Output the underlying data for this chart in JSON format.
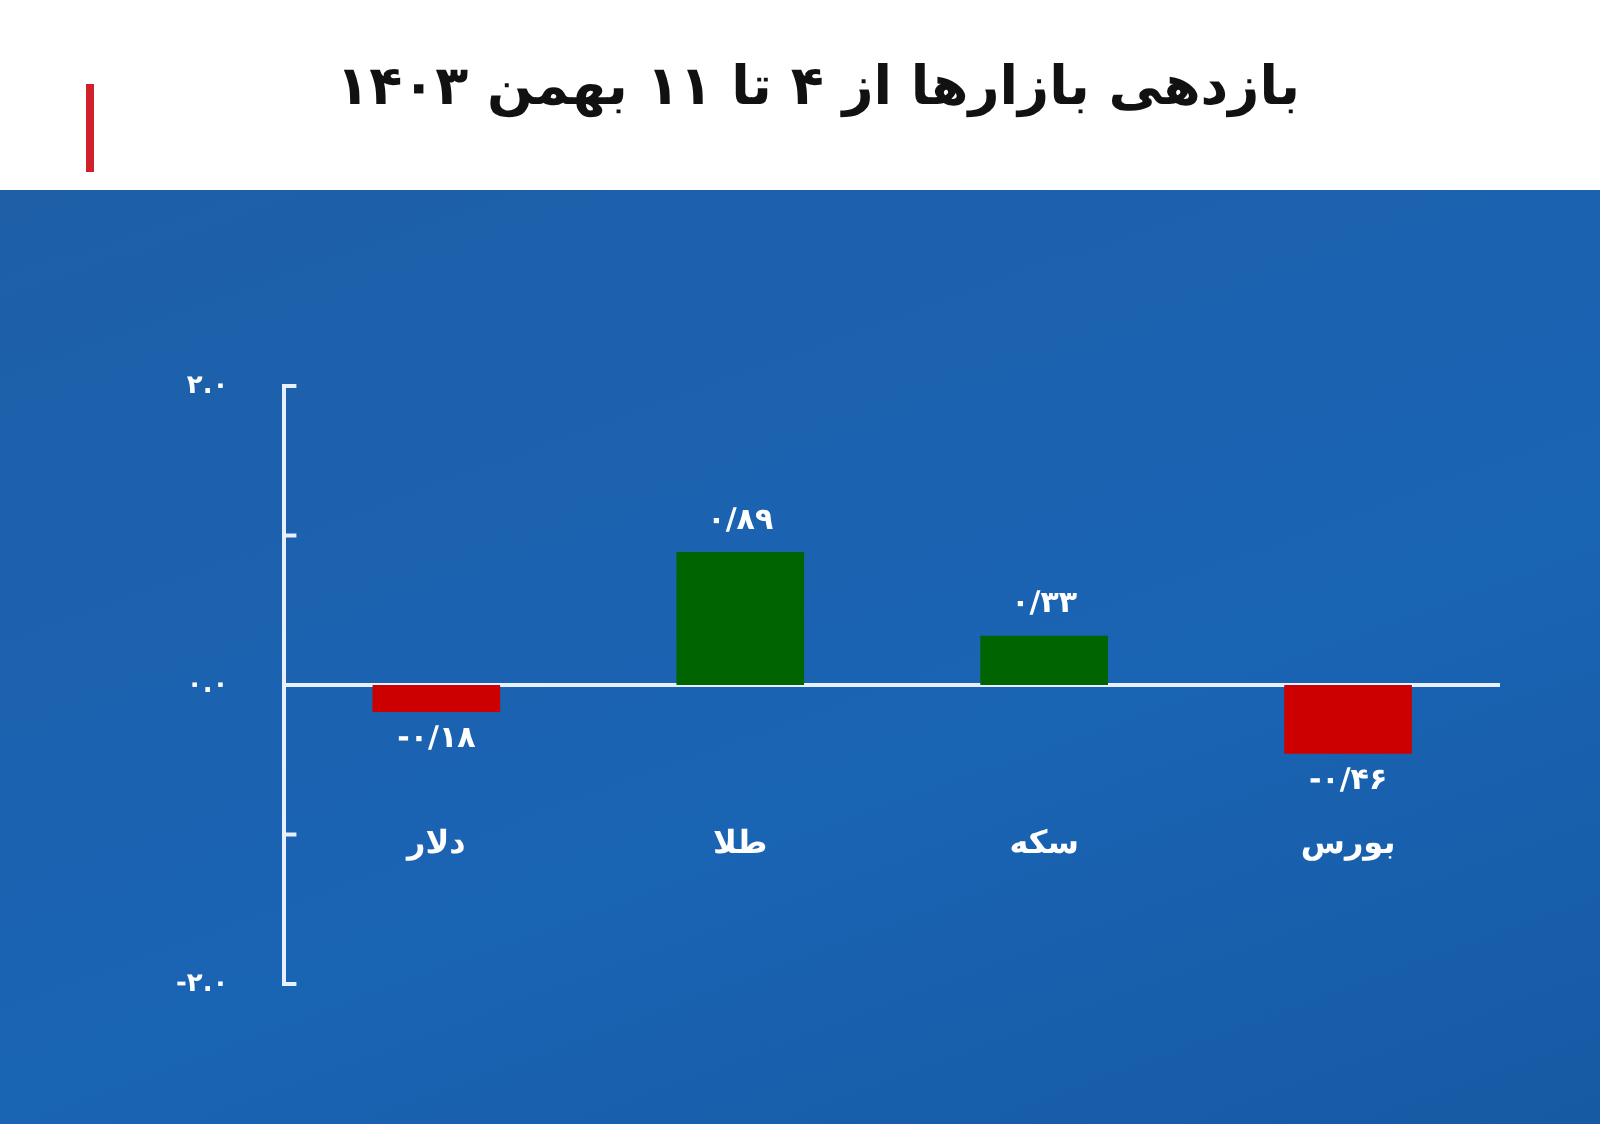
{
  "chart_data": {
    "type": "bar",
    "title": "بازدهی بازارها از ۴ تا ۱۱ بهمن ۱۴۰۳",
    "categories": [
      "دلار",
      "طلا",
      "سکه",
      "بورس"
    ],
    "values": [
      -0.18,
      0.89,
      0.33,
      -0.46
    ],
    "colors": [
      "#cc0000",
      "#006400",
      "#006400",
      "#cc0000"
    ],
    "value_labels": [
      "-۰/۱۸",
      "۰/۸۹",
      "۰/۳۳",
      "-۰/۴۶"
    ],
    "ylim": [
      -2,
      2
    ],
    "yticks": [
      {
        "value": 2,
        "label": "۲.۰"
      },
      {
        "value": 1,
        "label": null
      },
      {
        "value": 0,
        "label": "۰.۰"
      },
      {
        "value": -1,
        "label": null
      },
      {
        "value": -2,
        "label": "-۲.۰"
      }
    ],
    "ref_lines": [
      {
        "axis": "y",
        "value": 0,
        "color": "#e8f0ff"
      }
    ],
    "grid": false,
    "legend": false
  }
}
